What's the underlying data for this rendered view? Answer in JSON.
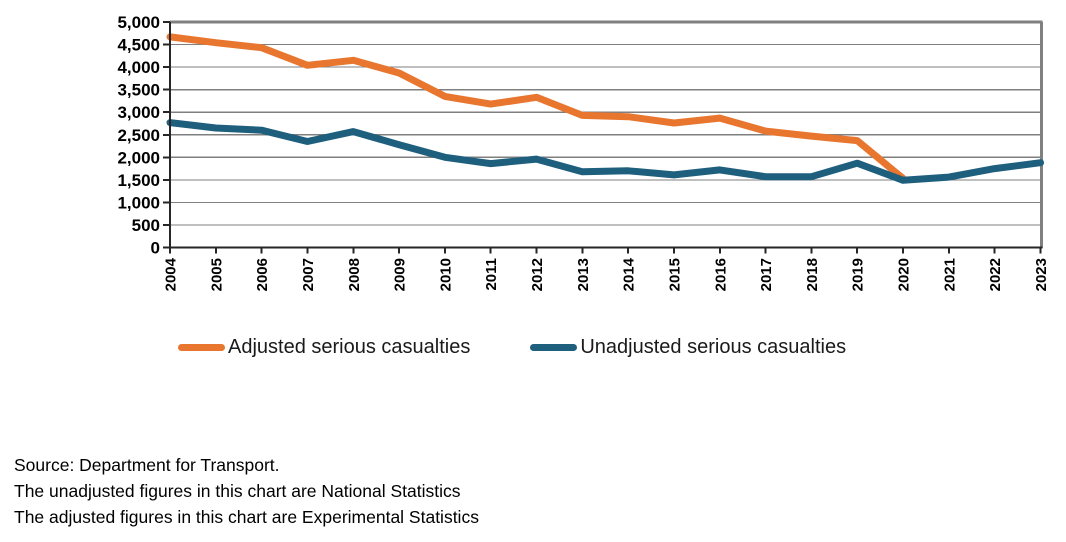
{
  "chart_data": {
    "type": "line",
    "title": "",
    "xlabel": "",
    "ylabel": "",
    "x": [
      2004,
      2005,
      2006,
      2007,
      2008,
      2009,
      2010,
      2011,
      2012,
      2013,
      2014,
      2015,
      2016,
      2017,
      2018,
      2019,
      2020,
      2021,
      2022,
      2023
    ],
    "x_tick_labels": [
      "2004",
      "2005",
      "2006",
      "2007",
      "2008",
      "2009",
      "2010",
      "2011",
      "2012",
      "2013",
      "2014",
      "2015",
      "2016",
      "2017",
      "2018",
      "2019",
      "2020",
      "2021",
      "2022",
      "2023"
    ],
    "series": [
      {
        "name": "Adjusted serious casualties",
        "color": "#E8762F",
        "values": [
          4670,
          4540,
          4430,
          4040,
          4150,
          3870,
          3350,
          3180,
          3330,
          2930,
          2900,
          2760,
          2870,
          2580,
          2470,
          2370,
          1530,
          null,
          null,
          null
        ]
      },
      {
        "name": "Unadjusted serious casualties",
        "color": "#1E5F7D",
        "values": [
          2770,
          2650,
          2600,
          2350,
          2570,
          2280,
          2000,
          1860,
          1960,
          1680,
          1700,
          1610,
          1720,
          1570,
          1570,
          1870,
          1490,
          1560,
          1750,
          1880
        ]
      }
    ],
    "ylim": [
      0,
      5000
    ],
    "ytick_step": 500,
    "y_tick_labels": [
      "0",
      "500",
      "1,000",
      "1,500",
      "2,000",
      "2,500",
      "3,000",
      "3,500",
      "4,000",
      "4,500",
      "5,000"
    ],
    "grid": "horizontal",
    "legend_position": "bottom"
  },
  "legend": {
    "items": [
      {
        "label": "Adjusted serious casualties",
        "color": "#E8762F"
      },
      {
        "label": "Unadjusted serious casualties",
        "color": "#1E5F7D"
      }
    ]
  },
  "footer": {
    "lines": [
      "Source: Department for Transport.",
      "The unadjusted figures in this chart are National Statistics",
      "The adjusted figures in this chart are Experimental Statistics"
    ]
  },
  "style_colors": {
    "gridline": "#7F7F7F",
    "border": "#808080",
    "axis": "#262626",
    "tick_label": "#000000"
  }
}
